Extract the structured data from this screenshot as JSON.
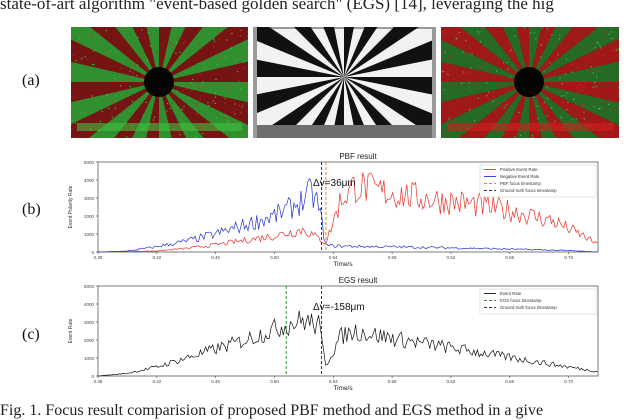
{
  "header_text": "state-of-art algorithm \"event-based golden search\" (EGS) [14], leveraging the hig",
  "caption": "Fig. 1. Focus result comparision of proposed PBF method and EGS method in a give",
  "panels": {
    "a": {
      "label": "(a)"
    },
    "b": {
      "label": "(b)"
    },
    "c": {
      "label": "(c)"
    }
  },
  "colors": {
    "positive": "#e8332a",
    "negative": "#2233cc",
    "events": "#111111",
    "pbf_line": "#d98a1a",
    "gt_line": "#333333",
    "egs_line": "#2a9a2a",
    "green_events": "#3fbf3f",
    "red_events": "#d42020"
  },
  "chart_data": [
    {
      "type": "line",
      "title": "PBF result",
      "xlabel": "Time/s",
      "ylabel": "Event Polarity Rate",
      "xlim": [
        0.38,
        0.72
      ],
      "ylim": [
        0,
        5000
      ],
      "x_ticks": [
        "0.38",
        "0.42",
        "0.46",
        "0.50",
        "0.54",
        "0.58",
        "0.62",
        "0.66",
        "0.70"
      ],
      "y_ticks": [
        "0",
        "1000",
        "2000",
        "3000",
        "4000",
        "5000"
      ],
      "annotation": "Δv=36μm",
      "legend": [
        "Positive Event Rate",
        "Negative Event Rate",
        "PBF focus timestamp",
        "Ground truth focus timestamp"
      ],
      "legend_position": "top-right",
      "vlines": {
        "pbf": 0.535,
        "ground_truth": 0.532
      },
      "series": [
        {
          "name": "Positive Event Rate",
          "points": [
            [
              0.38,
              0
            ],
            [
              0.42,
              60
            ],
            [
              0.44,
              200
            ],
            [
              0.46,
              400
            ],
            [
              0.48,
              650
            ],
            [
              0.5,
              900
            ],
            [
              0.52,
              1250
            ],
            [
              0.535,
              500
            ],
            [
              0.545,
              2900
            ],
            [
              0.555,
              3700
            ],
            [
              0.57,
              3400
            ],
            [
              0.6,
              3000
            ],
            [
              0.63,
              2700
            ],
            [
              0.66,
              2300
            ],
            [
              0.69,
              1700
            ],
            [
              0.71,
              900
            ],
            [
              0.72,
              400
            ]
          ]
        },
        {
          "name": "Negative Event Rate",
          "points": [
            [
              0.38,
              0
            ],
            [
              0.4,
              50
            ],
            [
              0.42,
              300
            ],
            [
              0.44,
              600
            ],
            [
              0.46,
              1000
            ],
            [
              0.48,
              1500
            ],
            [
              0.5,
              2000
            ],
            [
              0.51,
              2400
            ],
            [
              0.52,
              2900
            ],
            [
              0.525,
              3300
            ],
            [
              0.53,
              2600
            ],
            [
              0.535,
              350
            ],
            [
              0.55,
              320
            ],
            [
              0.6,
              260
            ],
            [
              0.65,
              180
            ],
            [
              0.7,
              80
            ],
            [
              0.72,
              0
            ]
          ]
        }
      ]
    },
    {
      "type": "line",
      "title": "EGS result",
      "xlabel": "Time/s",
      "ylabel": "Event Rate",
      "xlim": [
        0.38,
        0.72
      ],
      "ylim": [
        0,
        5000
      ],
      "x_ticks": [
        "0.38",
        "0.42",
        "0.46",
        "0.50",
        "0.54",
        "0.58",
        "0.62",
        "0.66",
        "0.70"
      ],
      "y_ticks": [
        "0",
        "1000",
        "2000",
        "3000",
        "4000",
        "5000"
      ],
      "annotation": "Δv=-158μm",
      "legend": [
        "Event Rate",
        "EGS focus timestamp",
        "Ground truth focus timestamp"
      ],
      "legend_position": "top-right",
      "vlines": {
        "egs": 0.508,
        "ground_truth": 0.532
      },
      "series": [
        {
          "name": "Event Rate",
          "points": [
            [
              0.38,
              0
            ],
            [
              0.4,
              150
            ],
            [
              0.42,
              500
            ],
            [
              0.44,
              1000
            ],
            [
              0.46,
              1500
            ],
            [
              0.48,
              2000
            ],
            [
              0.5,
              2600
            ],
            [
              0.51,
              2900
            ],
            [
              0.52,
              3100
            ],
            [
              0.53,
              2800
            ],
            [
              0.535,
              600
            ],
            [
              0.545,
              2200
            ],
            [
              0.555,
              2500
            ],
            [
              0.58,
              2100
            ],
            [
              0.61,
              1700
            ],
            [
              0.64,
              1300
            ],
            [
              0.67,
              900
            ],
            [
              0.7,
              500
            ],
            [
              0.72,
              250
            ]
          ]
        }
      ]
    }
  ]
}
